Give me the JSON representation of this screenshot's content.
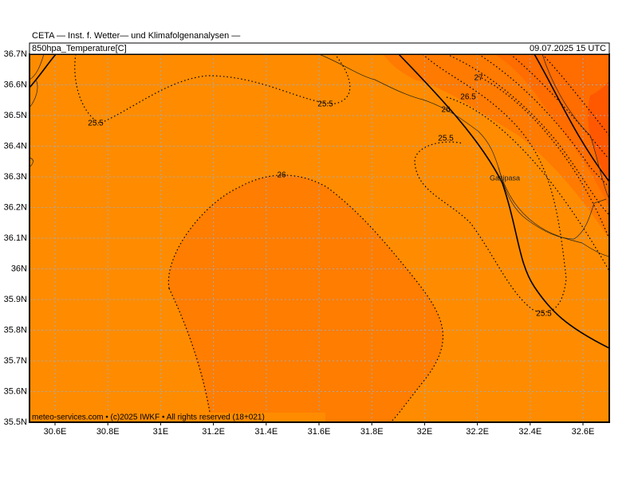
{
  "header": {
    "source": "CETA — Inst. f. Wetter— und Klimafolgenanalysen —",
    "field": "850hpa_Temperature[C]",
    "valid_time": "09.07.2025 15 UTC"
  },
  "footer": {
    "copyright": "meteo-services.com • (c)2025 IWKF • All rights reserved (18+021)"
  },
  "axes": {
    "longitude_labels": [
      "30.6E",
      "30.8E",
      "31E",
      "31.2E",
      "31.4E",
      "31.6E",
      "31.8E",
      "32E",
      "32.2E",
      "32.4E",
      "32.6E"
    ],
    "latitude_labels": [
      "36.7N",
      "36.6N",
      "36.5N",
      "36.4N",
      "36.3N",
      "36.2N",
      "36.1N",
      "36N",
      "35.9N",
      "35.8N",
      "35.7N",
      "35.6N",
      "35.5N"
    ]
  },
  "map": {
    "contour_labels": [
      "25.5",
      "25.5",
      "26",
      "27",
      "26.5",
      "26",
      "25.5",
      "25.5"
    ],
    "places": [
      "Gazipasa"
    ]
  }
}
